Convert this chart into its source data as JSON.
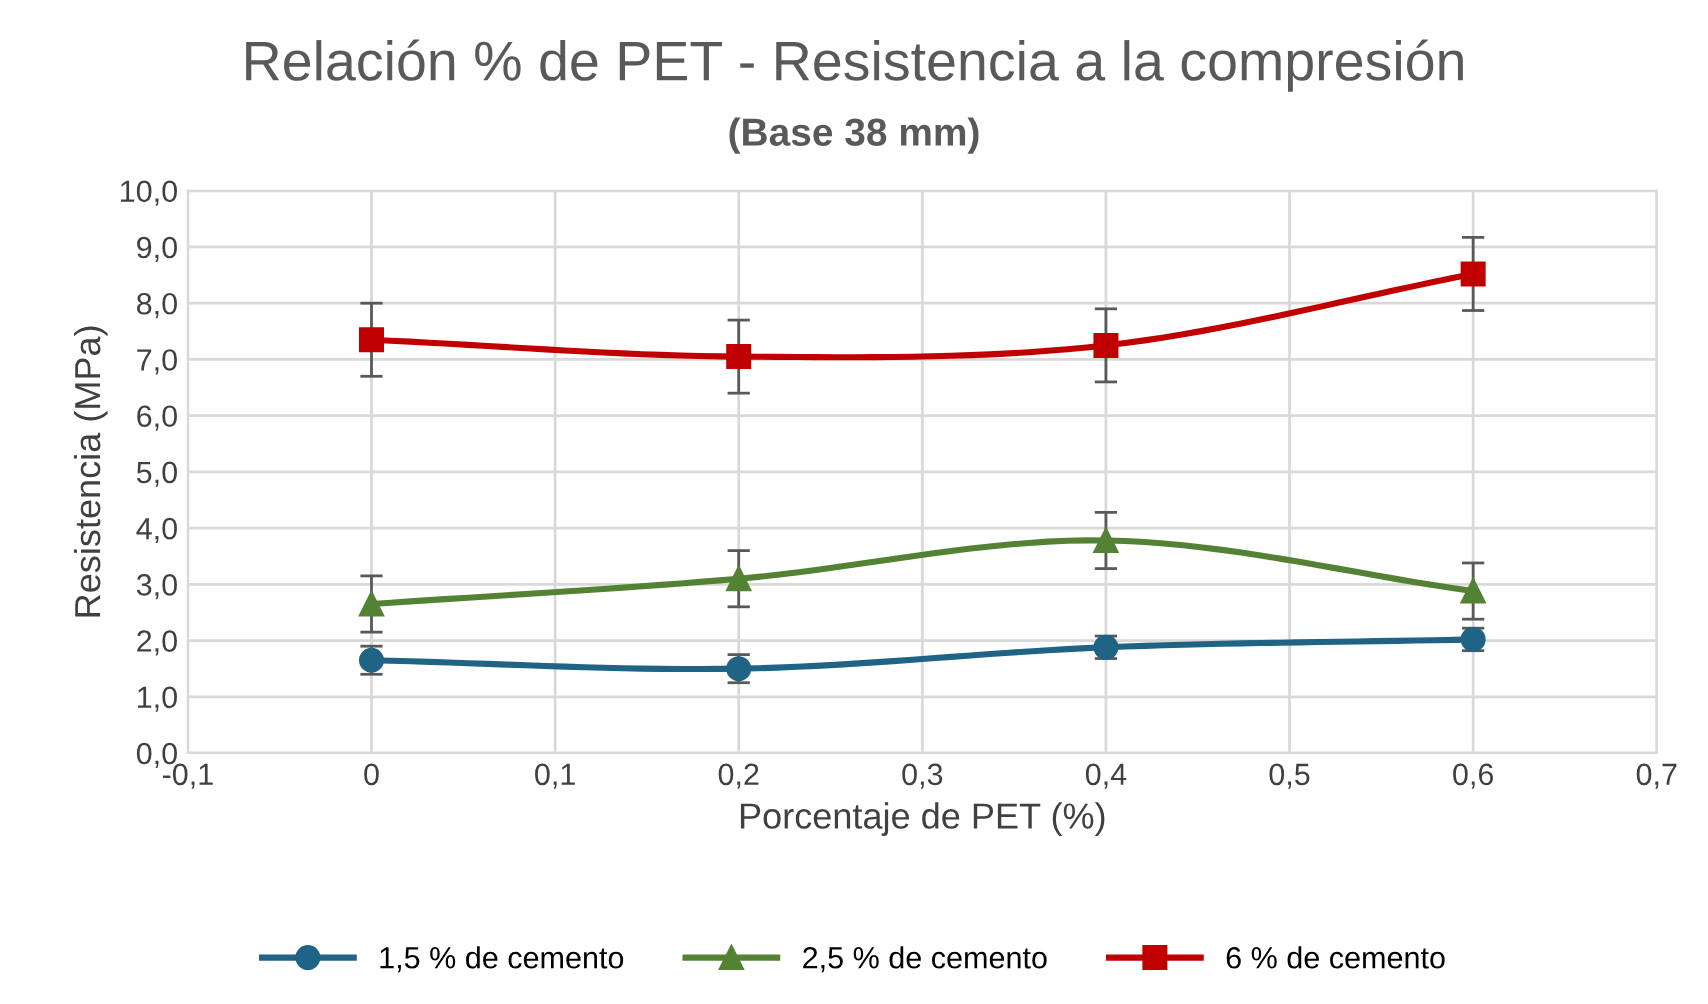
{
  "chart_data": {
    "type": "line",
    "title": "Relación % de PET - Resistencia a la compresión",
    "subtitle": "(Base 38 mm)",
    "xlabel": "Porcentaje de PET (%)",
    "ylabel": "Resistencia (MPa)",
    "x": [
      0,
      0.2,
      0.4,
      0.6
    ],
    "series": [
      {
        "name": "1,5 % de cemento",
        "color": "#1f6385",
        "marker": "circle",
        "values": [
          1.65,
          1.5,
          1.88,
          2.02
        ],
        "errors": [
          0.25,
          0.25,
          0.2,
          0.2
        ]
      },
      {
        "name": "2,5 % de cemento",
        "color": "#548235",
        "marker": "triangle",
        "values": [
          2.65,
          3.1,
          3.78,
          2.88
        ],
        "errors": [
          0.5,
          0.5,
          0.5,
          0.5
        ]
      },
      {
        "name": "6 % de cemento",
        "color": "#c00000",
        "marker": "square",
        "values": [
          7.35,
          7.05,
          7.25,
          8.52
        ],
        "errors": [
          0.65,
          0.65,
          0.65,
          0.65
        ]
      }
    ],
    "xlim": [
      -0.1,
      0.7
    ],
    "ylim": [
      0,
      10
    ],
    "xticks": [
      {
        "value": -0.1,
        "label": "-0,1"
      },
      0,
      {
        "value": 0.1,
        "label": "0,1"
      },
      {
        "value": 0.2,
        "label": "0,2"
      },
      {
        "value": 0.3,
        "label": "0,3"
      },
      {
        "value": 0.4,
        "label": "0,4"
      },
      {
        "value": 0.5,
        "label": "0,5"
      },
      {
        "value": 0.6,
        "label": "0,6"
      },
      {
        "value": 0.7,
        "label": "0,7"
      }
    ],
    "yticks": [
      {
        "value": 0,
        "label": "0,0"
      },
      {
        "value": 1,
        "label": "1,0"
      },
      {
        "value": 2,
        "label": "2,0"
      },
      {
        "value": 3,
        "label": "3,0"
      },
      {
        "value": 4,
        "label": "4,0"
      },
      {
        "value": 5,
        "label": "5,0"
      },
      {
        "value": 6,
        "label": "6,0"
      },
      {
        "value": 7,
        "label": "7,0"
      },
      {
        "value": 8,
        "label": "8,0"
      },
      {
        "value": 9,
        "label": "9,0"
      },
      {
        "value": 10,
        "label": "10,0"
      }
    ],
    "grid": true,
    "legend": "bottom",
    "line_style": "solid"
  }
}
